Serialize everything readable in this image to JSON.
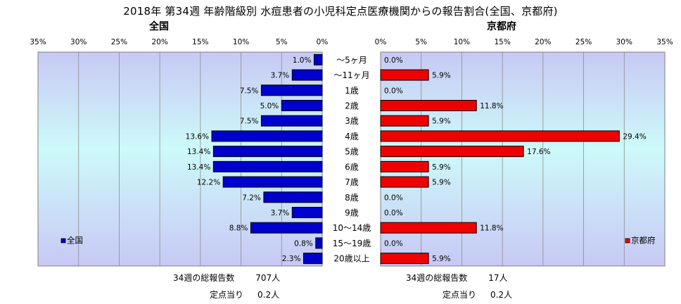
{
  "title": "2018年 第34週 年齢階級別 水痘患者の小児科定点医療機関からの報告割合(全国、京都府)",
  "chart_data": [
    {
      "type": "bar",
      "orientation": "horizontal",
      "direction": "right-to-left",
      "title": "全国",
      "series": [
        {
          "name": "全国",
          "color": "#0000cc",
          "values": [
            1.0,
            3.7,
            7.5,
            5.0,
            7.5,
            13.6,
            13.4,
            13.4,
            12.2,
            7.2,
            3.7,
            8.8,
            0.8,
            2.3
          ]
        }
      ],
      "value_labels": [
        "1.0%",
        "3.7%",
        "7.5%",
        "5.0%",
        "7.5%",
        "13.6%",
        "13.4%",
        "13.4%",
        "12.2%",
        "7.2%",
        "3.7%",
        "8.8%",
        "0.8%",
        "2.3%"
      ],
      "xlim": [
        0,
        35
      ],
      "ticks": [
        "35%",
        "30%",
        "25%",
        "20%",
        "15%",
        "10%",
        "5%",
        "0%"
      ],
      "legend": {
        "label": "全国",
        "position": "bottom-left"
      },
      "grid": true
    },
    {
      "type": "bar",
      "orientation": "horizontal",
      "direction": "left-to-right",
      "title": "京都府",
      "series": [
        {
          "name": "京都府",
          "color": "#ee0000",
          "values": [
            0.0,
            5.9,
            0.0,
            11.8,
            5.9,
            29.4,
            17.6,
            5.9,
            5.9,
            0.0,
            0.0,
            11.8,
            0.0,
            5.9
          ]
        }
      ],
      "value_labels": [
        "0.0%",
        "5.9%",
        "0.0%",
        "11.8%",
        "5.9%",
        "29.4%",
        "17.6%",
        "5.9%",
        "5.9%",
        "0.0%",
        "0.0%",
        "11.8%",
        "0.0%",
        "5.9%"
      ],
      "xlim": [
        0,
        35
      ],
      "ticks": [
        "0%",
        "5%",
        "10%",
        "15%",
        "20%",
        "25%",
        "30%",
        "35%"
      ],
      "legend": {
        "label": "京都府",
        "position": "bottom-right"
      },
      "grid": true
    }
  ],
  "categories": [
    "～5ヶ月",
    "～11ヶ月",
    "1歳",
    "2歳",
    "3歳",
    "4歳",
    "5歳",
    "6歳",
    "7歳",
    "8歳",
    "9歳",
    "10～14歳",
    "15～19歳",
    "20歳以上"
  ],
  "footer": {
    "left": {
      "total_label": "34週の総報告数",
      "total_value": "707人",
      "per_label": "定点当り",
      "per_value": "0.2人"
    },
    "right": {
      "total_label": "34週の総報告数",
      "total_value": "17人",
      "per_label": "定点当り",
      "per_value": "0.2人"
    }
  }
}
